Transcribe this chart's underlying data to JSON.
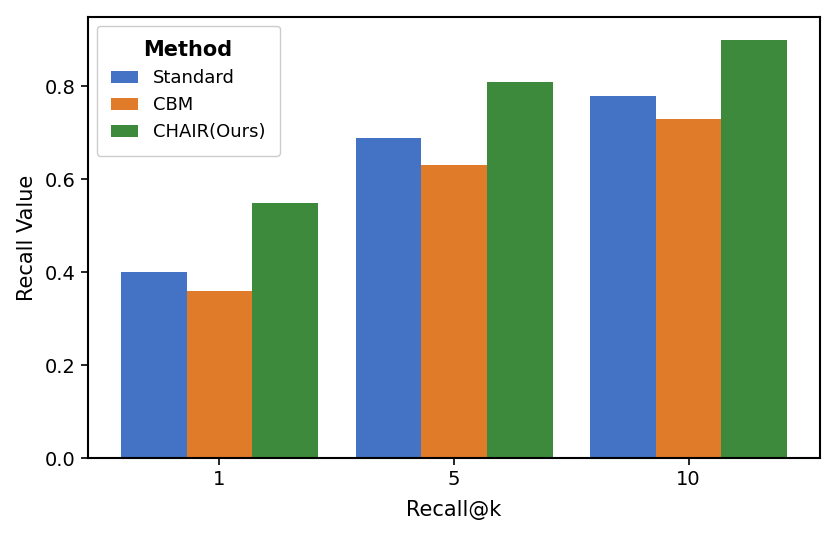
{
  "categories": [
    "1",
    "5",
    "10"
  ],
  "methods": [
    "Standard",
    "CBM",
    "CHAIR(Ours)"
  ],
  "values": {
    "Standard": [
      0.4,
      0.69,
      0.78
    ],
    "CBM": [
      0.36,
      0.63,
      0.73
    ],
    "CHAIR(Ours)": [
      0.55,
      0.81,
      0.9
    ]
  },
  "colors": {
    "Standard": "#4472c4",
    "CBM": "#e07b2a",
    "CHAIR(Ours)": "#3d8a3d"
  },
  "legend_title": "Method",
  "xlabel": "Recall@k",
  "ylabel": "Recall Value",
  "ylim": [
    0.0,
    0.95
  ],
  "bar_width": 0.28,
  "axis_fontsize": 15,
  "tick_fontsize": 14,
  "legend_fontsize": 13,
  "legend_title_fontsize": 15
}
